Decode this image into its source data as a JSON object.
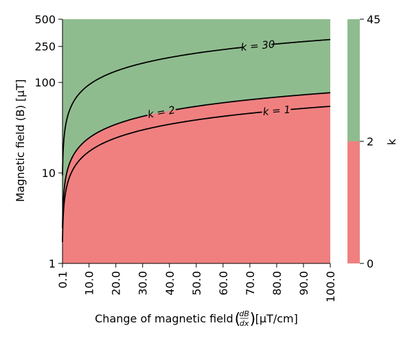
{
  "chart_data": {
    "type": "heatmap",
    "xlabel_prefix": "Change of magnetic field ",
    "xlabel_suffix": " [μT/cm]",
    "xlabel_frac_num": "dB",
    "xlabel_frac_den": "dx",
    "ylabel": "Magnetic field (B) [μT]",
    "colorbar_label": "k",
    "x_range": [
      0.1,
      100.0
    ],
    "y_range": [
      1,
      500
    ],
    "y_scale": "log",
    "x_ticks": [
      "0.1",
      "10.0",
      "20.0",
      "30.0",
      "40.0",
      "50.0",
      "60.0",
      "70.0",
      "80.0",
      "90.0",
      "100.0"
    ],
    "y_ticks": [
      "1",
      "10",
      "100",
      "250",
      "500"
    ],
    "colorbar_ticks": [
      "0",
      "2",
      "45"
    ],
    "regions": [
      {
        "range": [
          0,
          2
        ],
        "color": "#f08080"
      },
      {
        "range": [
          2,
          45
        ],
        "color": "#8fbc8f"
      }
    ],
    "contours": [
      {
        "label": "k = 1",
        "k": 1
      },
      {
        "label": "k = 2",
        "k": 2
      },
      {
        "label": "k = 30",
        "k": 30
      }
    ]
  }
}
